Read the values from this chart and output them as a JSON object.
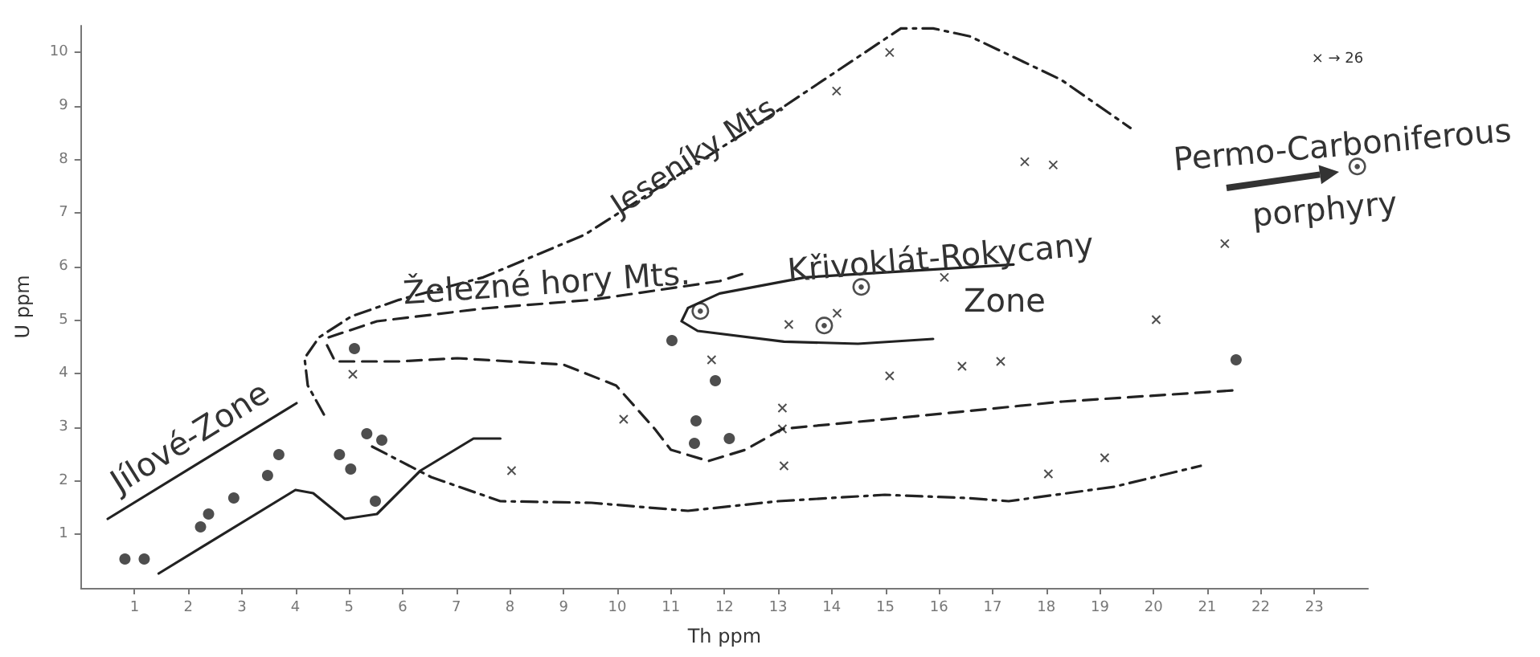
{
  "chart_data": {
    "type": "scatter",
    "xlabel": "Th ppm",
    "ylabel": "U ppm",
    "xlim": [
      0,
      24
    ],
    "xticks": [
      1,
      2,
      3,
      4,
      5,
      6,
      7,
      8,
      9,
      10,
      11,
      12,
      13,
      14,
      15,
      16,
      17,
      18,
      19,
      20,
      21,
      22,
      23
    ],
    "ylim": [
      0,
      10.5
    ],
    "yticks": [
      1,
      2,
      3,
      4,
      5,
      6,
      7,
      8,
      9,
      10
    ],
    "grid": false,
    "series": [
      {
        "marker": "circle",
        "color": "#222222",
        "x": [
          0.82,
          1.18,
          2.23,
          2.38,
          2.85,
          3.48,
          3.69,
          4.82,
          5.03,
          5.33,
          5.61,
          5.49,
          5.1,
          11.02,
          11.83,
          11.47,
          11.44,
          12.09,
          21.54
        ],
        "values": [
          0.54,
          0.54,
          1.14,
          1.38,
          1.68,
          2.1,
          2.49,
          2.49,
          2.22,
          2.88,
          2.76,
          1.62,
          4.47,
          4.62,
          3.87,
          3.12,
          2.7,
          2.79,
          4.26
        ]
      },
      {
        "marker": "cross",
        "color": "#222222",
        "x": [
          5.07,
          8.03,
          11.76,
          10.12,
          13.2,
          14.1,
          13.08,
          13.08,
          13.11,
          16.1,
          15.08,
          16.43,
          17.15,
          17.6,
          18.13,
          21.33,
          20.05,
          18.04,
          19.09,
          14.09,
          15.08
        ],
        "values": [
          3.99,
          2.19,
          4.26,
          3.15,
          4.92,
          5.13,
          3.36,
          2.97,
          2.28,
          5.8,
          3.96,
          4.14,
          4.23,
          7.96,
          7.9,
          6.43,
          5.01,
          2.13,
          2.43,
          9.28,
          10.0
        ]
      },
      {
        "marker": "circle",
        "color": "#222222",
        "x": [
          11.55,
          13.86,
          14.55,
          23.8
        ],
        "values": [
          5.17,
          4.9,
          5.62,
          7.87
        ]
      },
      {
        "type": "line",
        "marker": "none",
        "line_style": "solid",
        "color": "#222222",
        "x": [
          1.45,
          4.0,
          4.33,
          4.92,
          5.52,
          6.33,
          7.32,
          7.82
        ],
        "values": [
          0.27,
          1.83,
          1.77,
          1.29,
          1.38,
          2.19,
          2.79,
          2.79
        ]
      },
      {
        "type": "line",
        "marker": "none",
        "line_style": "solid",
        "color": "#222222",
        "x": [
          0.5,
          4.02
        ],
        "values": [
          1.29,
          3.45
        ]
      },
      {
        "type": "line",
        "marker": "none",
        "line_style": "dashed",
        "color": "#222222",
        "x": [
          4.62,
          5.52,
          7.52,
          9.52,
          11.91,
          12.39
        ],
        "values": [
          4.68,
          4.98,
          5.22,
          5.38,
          5.73,
          5.88
        ]
      },
      {
        "type": "line",
        "marker": "none",
        "line_style": "dashed",
        "color": "#222222",
        "x": [
          4.59,
          4.74,
          5.93,
          7.02,
          9.0,
          9.98,
          10.7,
          11.0,
          11.7,
          12.39,
          13.08,
          15.3,
          18.3,
          21.5
        ],
        "values": [
          4.53,
          4.23,
          4.23,
          4.29,
          4.17,
          3.78,
          2.97,
          2.58,
          2.37,
          2.58,
          2.97,
          3.18,
          3.48,
          3.69
        ]
      },
      {
        "type": "line",
        "marker": "none",
        "line_style": "dotted",
        "color": "#222222",
        "x": [
          4.53,
          4.23,
          4.17,
          4.44,
          5.04,
          5.93,
          7.5,
          9.4,
          12.42,
          15.29,
          15.89,
          16.58,
          18.28,
          19.57
        ],
        "values": [
          3.24,
          3.78,
          4.29,
          4.68,
          5.07,
          5.38,
          5.8,
          6.6,
          8.53,
          10.45,
          10.45,
          10.3,
          9.49,
          8.59
        ]
      },
      {
        "type": "line",
        "marker": "none",
        "line_style": "dotted",
        "color": "#222222",
        "x": [
          5.43,
          6.53,
          7.82,
          9.52,
          11.32,
          13.0,
          14.99,
          16.49,
          17.3,
          19.27,
          20.88
        ],
        "values": [
          2.64,
          2.07,
          1.62,
          1.59,
          1.44,
          1.62,
          1.74,
          1.68,
          1.62,
          1.89,
          2.28
        ]
      },
      {
        "type": "line",
        "marker": "none",
        "line_style": "solid",
        "color": "#222222",
        "x": [
          17.39,
          13.5,
          11.91,
          11.32,
          11.2,
          11.5,
          13.11,
          14.49,
          15.89
        ],
        "values": [
          6.04,
          5.8,
          5.5,
          5.23,
          4.98,
          4.8,
          4.6,
          4.56,
          4.65
        ]
      }
    ],
    "annotations": [
      "Jílové-Zone",
      "Železné hory Mts.",
      "Jeseníky Mts.",
      "Křivoklát-Rokycany",
      "Zone",
      "Permo-Carboniferous",
      "porphyry",
      "× → 26"
    ]
  }
}
